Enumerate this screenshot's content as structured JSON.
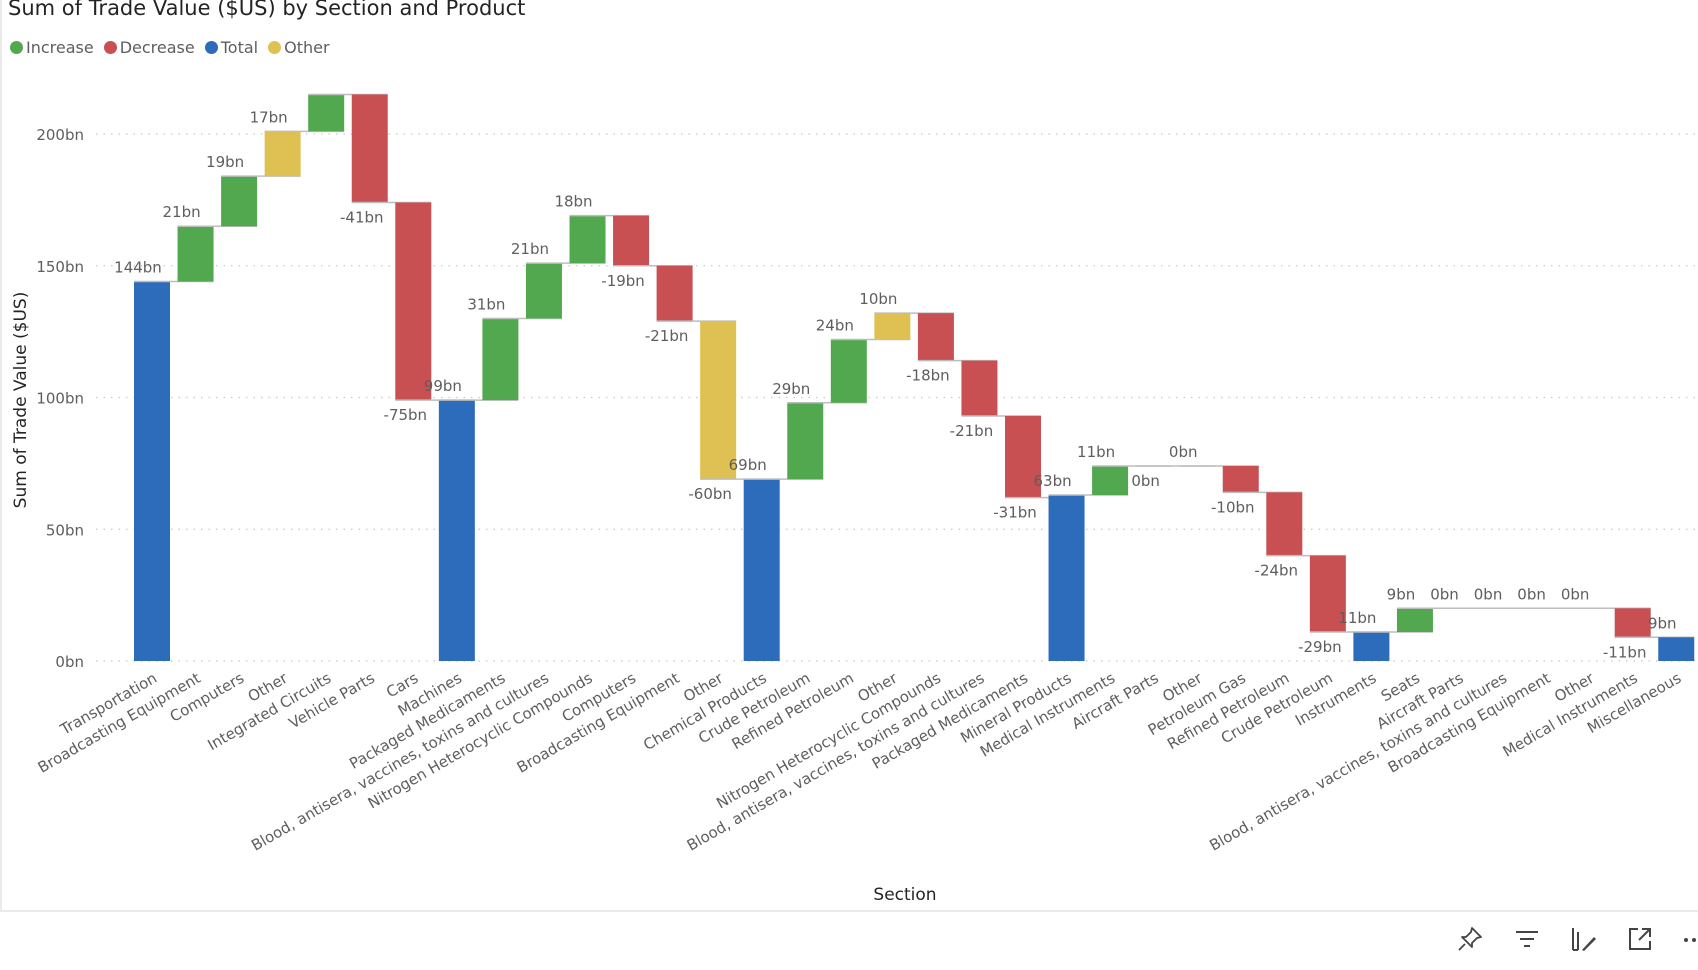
{
  "chart_data": {
    "type": "waterfall",
    "title": "Sum of Trade Value ($US) by Section and Product",
    "xlabel": "Section",
    "ylabel": "Sum of Trade Value ($US)",
    "ylim": [
      0,
      215
    ],
    "yticks": [
      0,
      50,
      100,
      150,
      200
    ],
    "ytick_labels": [
      "0bn",
      "50bn",
      "100bn",
      "150bn",
      "200bn"
    ],
    "grid": true,
    "legend_position": "top-left",
    "legend": [
      {
        "label": "Increase",
        "color": "#52A84E"
      },
      {
        "label": "Decrease",
        "color": "#C84F52"
      },
      {
        "label": "Total",
        "color": "#2D6BBB"
      },
      {
        "label": "Other",
        "color": "#DEC152"
      }
    ],
    "bars": [
      {
        "category": "Transportation",
        "kind": "total",
        "value": 144,
        "label": "144bn"
      },
      {
        "category": "Broadcasting Equipment",
        "kind": "increase",
        "value": 21,
        "label": "21bn"
      },
      {
        "category": "Computers",
        "kind": "increase",
        "value": 19,
        "label": "19bn"
      },
      {
        "category": "Other",
        "kind": "other",
        "value": 17,
        "label": "17bn"
      },
      {
        "category": "Integrated Circuits",
        "kind": "increase",
        "value": 14,
        "label": ""
      },
      {
        "category": "Vehicle Parts",
        "kind": "decrease",
        "value": -41,
        "label": "-41bn"
      },
      {
        "category": "Cars",
        "kind": "decrease",
        "value": -75,
        "label": "-75bn"
      },
      {
        "category": "Machines",
        "kind": "total",
        "value": 99,
        "label": "99bn"
      },
      {
        "category": "Packaged Medicaments",
        "kind": "increase",
        "value": 31,
        "label": "31bn"
      },
      {
        "category": "Blood, antisera, vaccines, toxins and cultures",
        "kind": "increase",
        "value": 21,
        "label": "21bn"
      },
      {
        "category": "Nitrogen Heterocyclic Compounds",
        "kind": "increase",
        "value": 18,
        "label": "18bn"
      },
      {
        "category": "Computers",
        "kind": "decrease",
        "value": -19,
        "label": "-19bn"
      },
      {
        "category": "Broadcasting Equipment",
        "kind": "decrease",
        "value": -21,
        "label": "-21bn"
      },
      {
        "category": "Other",
        "kind": "other",
        "value": -60,
        "label": "-60bn"
      },
      {
        "category": "Chemical Products",
        "kind": "total",
        "value": 69,
        "label": "69bn"
      },
      {
        "category": "Crude Petroleum",
        "kind": "increase",
        "value": 29,
        "label": "29bn"
      },
      {
        "category": "Refined Petroleum",
        "kind": "increase",
        "value": 24,
        "label": "24bn"
      },
      {
        "category": "Other",
        "kind": "other",
        "value": 10,
        "label": "10bn"
      },
      {
        "category": "Nitrogen Heterocyclic Compounds",
        "kind": "decrease",
        "value": -18,
        "label": "-18bn"
      },
      {
        "category": "Blood, antisera, vaccines, toxins and cultures",
        "kind": "decrease",
        "value": -21,
        "label": "-21bn"
      },
      {
        "category": "Packaged Medicaments",
        "kind": "decrease",
        "value": -31,
        "label": "-31bn"
      },
      {
        "category": "Mineral Products",
        "kind": "total",
        "value": 63,
        "label": "63bn"
      },
      {
        "category": "Medical Instruments",
        "kind": "increase",
        "value": 11,
        "label": "11bn"
      },
      {
        "category": "Aircraft Parts",
        "kind": "decrease",
        "value": 0,
        "label": "0bn"
      },
      {
        "category": "Other",
        "kind": "other",
        "value": 0,
        "label": "0bn"
      },
      {
        "category": "Petroleum Gas",
        "kind": "decrease",
        "value": -10,
        "label": "-10bn"
      },
      {
        "category": "Refined Petroleum",
        "kind": "decrease",
        "value": -24,
        "label": "-24bn"
      },
      {
        "category": "Crude Petroleum",
        "kind": "decrease",
        "value": -29,
        "label": "-29bn"
      },
      {
        "category": "Instruments",
        "kind": "total",
        "value": 11,
        "label": "11bn"
      },
      {
        "category": "Seats",
        "kind": "increase",
        "value": 9,
        "label": "9bn"
      },
      {
        "category": "Aircraft Parts",
        "kind": "increase",
        "value": 0,
        "label": "0bn"
      },
      {
        "category": "Blood, antisera, vaccines, toxins and cultures",
        "kind": "increase",
        "value": 0,
        "label": "0bn"
      },
      {
        "category": "Broadcasting Equipment",
        "kind": "increase",
        "value": 0,
        "label": "0bn"
      },
      {
        "category": "Other",
        "kind": "other",
        "value": 0,
        "label": "0bn"
      },
      {
        "category": "Medical Instruments",
        "kind": "decrease",
        "value": -11,
        "label": "-11bn"
      },
      {
        "category": "Miscellaneous",
        "kind": "total",
        "value": 9,
        "label": "9bn"
      }
    ]
  },
  "footer": {
    "icons": [
      "pin-icon",
      "filter-icon",
      "format-visual-icon",
      "focus-mode-icon",
      "more-options-icon"
    ]
  }
}
